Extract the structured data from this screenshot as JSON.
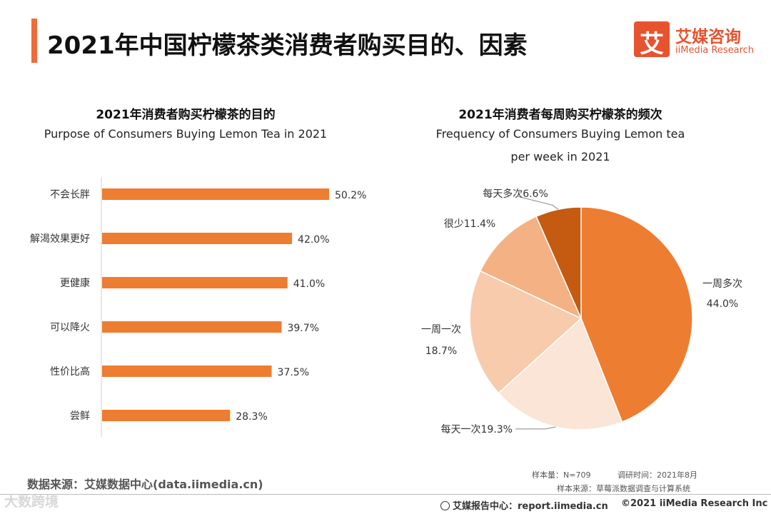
{
  "header": {
    "title": "2021年中国柠檬茶类消费者购买目的、因素",
    "logo_mark": "艾",
    "logo_cn": "艾媒咨询",
    "logo_en": "iiMedia Research"
  },
  "colors": {
    "accent": "#ef6b3a",
    "bar": "#ed7d31",
    "pie": [
      "#ed7d31",
      "#fbe5d6",
      "#f8cbad",
      "#f4b183",
      "#c55a11"
    ]
  },
  "chart_data": [
    {
      "type": "bar",
      "orientation": "horizontal",
      "title": "2021年消费者购买柠檬茶的目的",
      "subtitle": "Purpose of Consumers Buying Lemon Tea in 2021",
      "categories": [
        "不会长胖",
        "解渴效果更好",
        "更健康",
        "可以降火",
        "性价比高",
        "尝鲜"
      ],
      "values": [
        50.2,
        42.0,
        41.0,
        39.7,
        37.5,
        28.3
      ],
      "value_labels": [
        "50.2%",
        "42.0%",
        "41.0%",
        "39.7%",
        "37.5%",
        "28.3%"
      ],
      "xlim": [
        0,
        60
      ],
      "unit": "%"
    },
    {
      "type": "pie",
      "title": "2021年消费者每周购买柠檬茶的频次",
      "subtitle_line1": "Frequency of Consumers Buying Lemon tea",
      "subtitle_line2": "per week in 2021",
      "slices": [
        {
          "label": "一周多次",
          "value": 44.0,
          "display": "44.0%"
        },
        {
          "label": "每天一次",
          "value": 19.3,
          "display": "19.3%"
        },
        {
          "label": "一周一次",
          "value": 18.7,
          "display": "18.7%"
        },
        {
          "label": "很少",
          "value": 11.4,
          "display": "11.4%"
        },
        {
          "label": "每天多次",
          "value": 6.6,
          "display": "6.6%"
        }
      ]
    }
  ],
  "footer": {
    "source": "数据来源：艾媒数据中心(data.iimedia.cn)",
    "sample_size": "样本量：N=709",
    "survey_time": "调研时间：2021年8月",
    "sample_source": "样本来源：草莓派数据调查与计算系统",
    "report_center": "艾媒报告中心：report.iimedia.cn",
    "copyright": "©2021  iiMedia Research  Inc",
    "watermark": "大数跨境"
  }
}
